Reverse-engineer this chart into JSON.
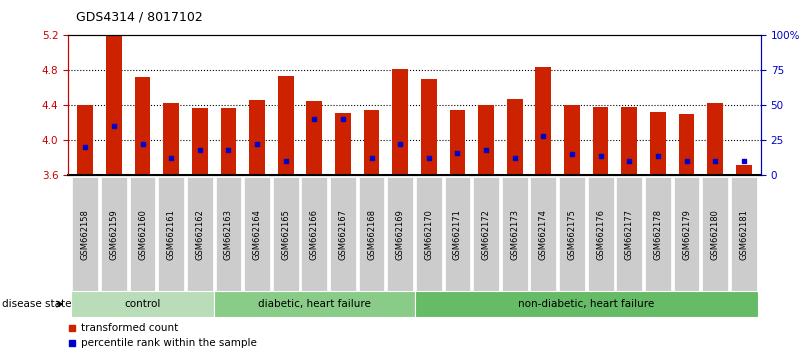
{
  "title": "GDS4314 / 8017102",
  "samples": [
    "GSM662158",
    "GSM662159",
    "GSM662160",
    "GSM662161",
    "GSM662162",
    "GSM662163",
    "GSM662164",
    "GSM662165",
    "GSM662166",
    "GSM662167",
    "GSM662168",
    "GSM662169",
    "GSM662170",
    "GSM662171",
    "GSM662172",
    "GSM662173",
    "GSM662174",
    "GSM662175",
    "GSM662176",
    "GSM662177",
    "GSM662178",
    "GSM662179",
    "GSM662180",
    "GSM662181"
  ],
  "red_values": [
    4.4,
    5.2,
    4.72,
    4.43,
    4.37,
    4.37,
    4.46,
    4.73,
    4.45,
    4.31,
    4.35,
    4.82,
    4.7,
    4.35,
    4.4,
    4.47,
    4.84,
    4.4,
    4.38,
    4.38,
    4.32,
    4.3,
    4.43,
    3.72
  ],
  "blue_percentiles": [
    20,
    35,
    22,
    12,
    18,
    18,
    22,
    10,
    40,
    40,
    12,
    22,
    12,
    16,
    18,
    12,
    28,
    15,
    14,
    10,
    14,
    10,
    10,
    10
  ],
  "ylim_left": [
    3.6,
    5.2
  ],
  "ylim_right": [
    0,
    100
  ],
  "yticks_left": [
    3.6,
    4.0,
    4.4,
    4.8,
    5.2
  ],
  "yticks_right": [
    0,
    25,
    50,
    75,
    100
  ],
  "ytick_labels_right": [
    "0",
    "25",
    "50",
    "75",
    "100%"
  ],
  "bar_color": "#cc2200",
  "dot_color": "#0000cc",
  "base": 3.6,
  "groups": [
    {
      "label": "control",
      "start": 0,
      "end": 4,
      "color": "#b8ddb8"
    },
    {
      "label": "diabetic, heart failure",
      "start": 5,
      "end": 11,
      "color": "#88cc88"
    },
    {
      "label": "non-diabetic, heart failure",
      "start": 12,
      "end": 23,
      "color": "#66bb66"
    }
  ],
  "disease_state_label": "disease state",
  "legend_red_label": "transformed count",
  "legend_blue_label": "percentile rank within the sample",
  "bar_width": 0.55,
  "tick_label_bg": "#cccccc",
  "grid_color": "#000000",
  "spine_color_left": "#cc0000",
  "spine_color_right": "#0000cc"
}
